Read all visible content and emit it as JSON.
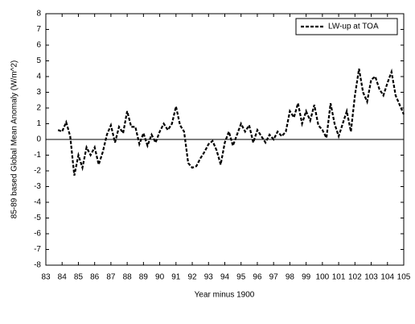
{
  "chart_data": {
    "type": "line",
    "xlabel": "Year minus 1900",
    "ylabel": "85-89 based Global Mean Anomaly  (W/m^2)",
    "x": [
      83.75,
      84.0,
      84.25,
      84.5,
      84.75,
      85.0,
      85.25,
      85.5,
      85.75,
      86.0,
      86.25,
      86.5,
      86.75,
      87.0,
      87.25,
      87.5,
      87.75,
      88.0,
      88.25,
      88.5,
      88.75,
      89.0,
      89.25,
      89.5,
      89.75,
      90.0,
      90.25,
      90.5,
      90.75,
      91.0,
      91.25,
      91.5,
      91.75,
      92.0,
      92.25,
      92.5,
      92.75,
      93.0,
      93.25,
      93.5,
      93.75,
      94.0,
      94.25,
      94.5,
      94.75,
      95.0,
      95.25,
      95.5,
      95.75,
      96.0,
      96.25,
      96.5,
      96.75,
      97.0,
      97.25,
      97.5,
      97.75,
      98.0,
      98.25,
      98.5,
      98.75,
      99.0,
      99.25,
      99.5,
      99.75,
      100.0,
      100.25,
      100.5,
      100.75,
      101.0,
      101.25,
      101.5,
      101.75,
      102.0,
      102.25,
      102.5,
      102.75,
      103.0,
      103.25,
      103.5,
      103.75,
      104.0,
      104.25,
      104.5,
      104.75,
      105.0
    ],
    "series": [
      {
        "name": "LW-up at TOA",
        "color": "#000000",
        "values": [
          0.6,
          0.5,
          1.1,
          0.2,
          -2.3,
          -1.0,
          -1.8,
          -0.5,
          -1.0,
          -0.5,
          -1.6,
          -0.8,
          0.3,
          0.9,
          -0.2,
          0.8,
          0.4,
          1.8,
          0.8,
          0.8,
          -0.3,
          0.4,
          -0.4,
          0.3,
          -0.2,
          0.5,
          1.0,
          0.6,
          1.0,
          2.1,
          0.9,
          0.5,
          -1.5,
          -1.8,
          -1.7,
          -1.2,
          -0.8,
          -0.3,
          -0.1,
          -0.7,
          -1.6,
          -0.2,
          0.5,
          -0.4,
          0.3,
          1.0,
          0.5,
          0.9,
          -0.2,
          0.6,
          0.2,
          -0.2,
          0.3,
          0.0,
          0.5,
          0.2,
          0.5,
          1.8,
          1.4,
          2.3,
          1.0,
          1.8,
          1.2,
          2.2,
          0.9,
          0.6,
          0.1,
          2.3,
          1.0,
          0.2,
          1.0,
          1.8,
          0.5,
          2.8,
          4.5,
          3.0,
          2.4,
          3.8,
          4.0,
          3.2,
          2.8,
          3.6,
          4.3,
          2.8,
          2.2,
          1.6
        ]
      }
    ],
    "xlim": [
      83,
      105
    ],
    "xticks": [
      83,
      84,
      85,
      86,
      87,
      88,
      89,
      90,
      91,
      92,
      93,
      94,
      95,
      96,
      97,
      98,
      99,
      100,
      101,
      102,
      103,
      104,
      105
    ],
    "ylim": [
      -8,
      8
    ],
    "yticks": [
      -8,
      -7,
      -6,
      -5,
      -4,
      -3,
      -2,
      -1,
      0,
      1,
      2,
      3,
      4,
      5,
      6,
      7,
      8
    ],
    "zero_line": true,
    "legend": "upper right"
  }
}
